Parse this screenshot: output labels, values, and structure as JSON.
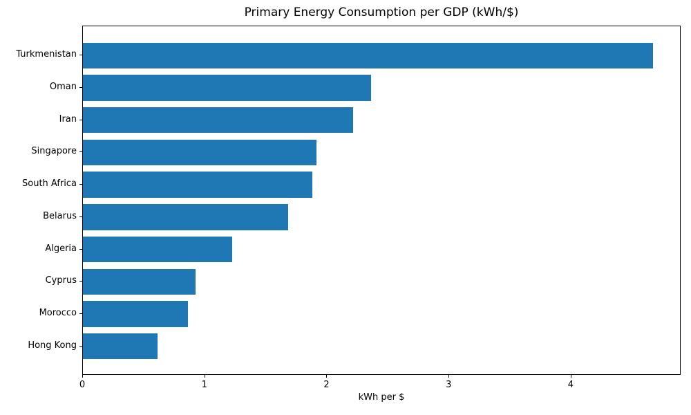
{
  "chart_data": {
    "type": "bar",
    "orientation": "horizontal",
    "title": "Primary Energy Consumption per GDP (kWh/$)",
    "xlabel": "kWh per $",
    "ylabel": "",
    "categories": [
      "Turkmenistan",
      "Oman",
      "Iran",
      "Singapore",
      "South Africa",
      "Belarus",
      "Algeria",
      "Cyprus",
      "Morocco",
      "Hong Kong"
    ],
    "values": [
      4.67,
      2.36,
      2.21,
      1.91,
      1.88,
      1.68,
      1.22,
      0.92,
      0.86,
      0.61
    ],
    "xlim": [
      0,
      4.9
    ],
    "xticks": [
      "0",
      "1",
      "2",
      "3",
      "4"
    ],
    "bar_color": "#1f77b4",
    "axis_color": "#000000",
    "grid": false,
    "legend": null
  }
}
